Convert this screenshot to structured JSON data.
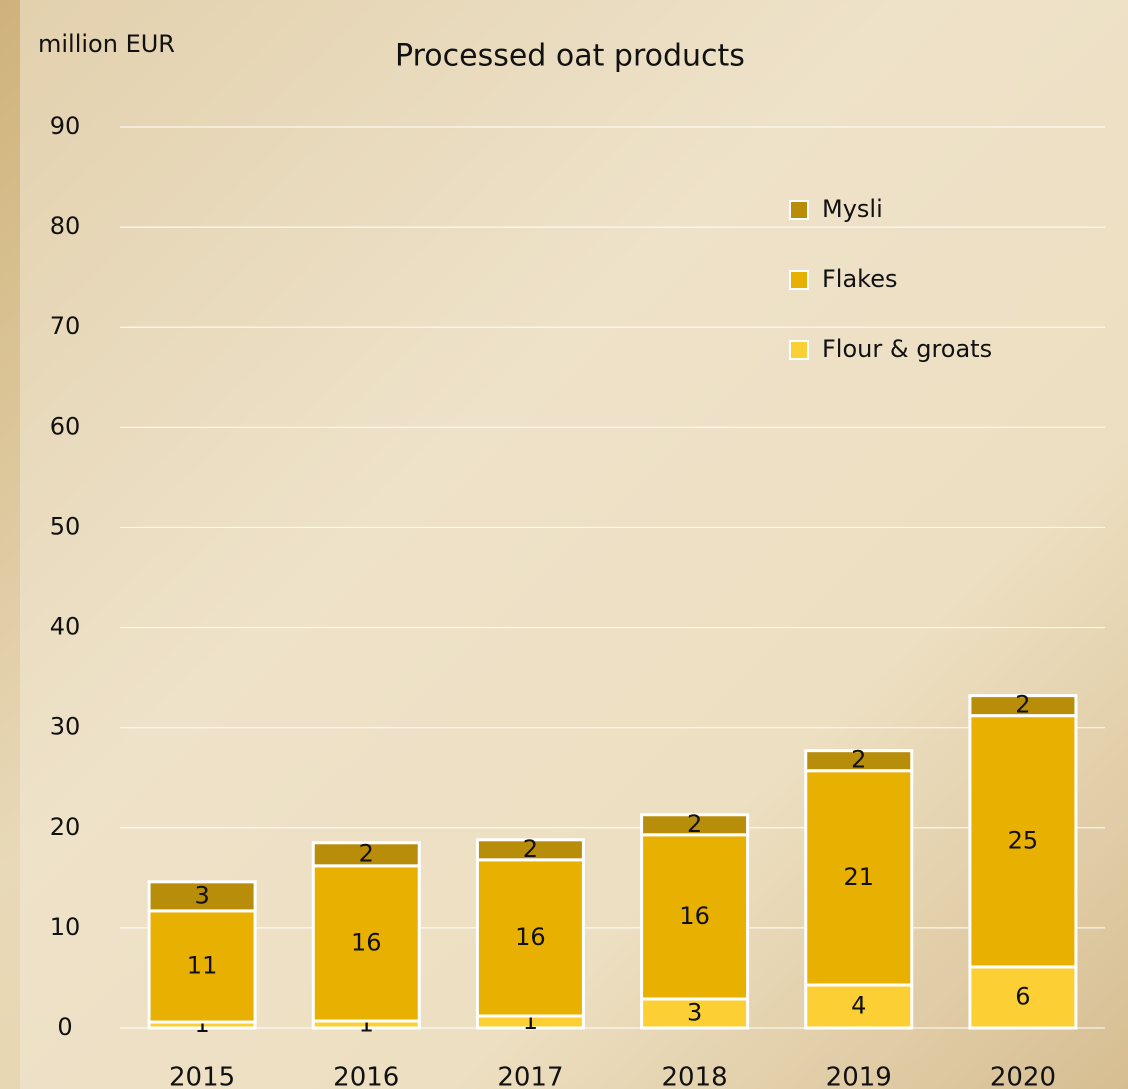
{
  "chart_data": {
    "type": "stacked_bar",
    "title": "Processed oat products",
    "y_label": "million EUR",
    "categories": [
      "2015",
      "2016",
      "2017",
      "2018",
      "2019",
      "2020"
    ],
    "series": [
      {
        "name": "Flour & groats",
        "color": "#fcd035",
        "values": [
          0.6,
          0.7,
          1.2,
          2.9,
          4.3,
          6.1
        ],
        "value_labels": [
          "1",
          "1",
          "1",
          "3",
          "4",
          "6"
        ]
      },
      {
        "name": "Flakes",
        "color": "#e8b000",
        "values": [
          11.1,
          15.5,
          15.6,
          16.4,
          21.4,
          25.1
        ],
        "value_labels": [
          "11",
          "16",
          "16",
          "16",
          "21",
          "25"
        ]
      },
      {
        "name": "Mysli",
        "color": "#b88d0a",
        "values": [
          2.9,
          2.3,
          2.0,
          2.0,
          2.0,
          2.0
        ],
        "value_labels": [
          "3",
          "2",
          "2",
          "2",
          "2",
          "2"
        ]
      }
    ],
    "ylim": [
      0,
      90
    ],
    "yticks": [
      0,
      10,
      20,
      30,
      40,
      50,
      60,
      70,
      80,
      90
    ],
    "grid": true
  }
}
